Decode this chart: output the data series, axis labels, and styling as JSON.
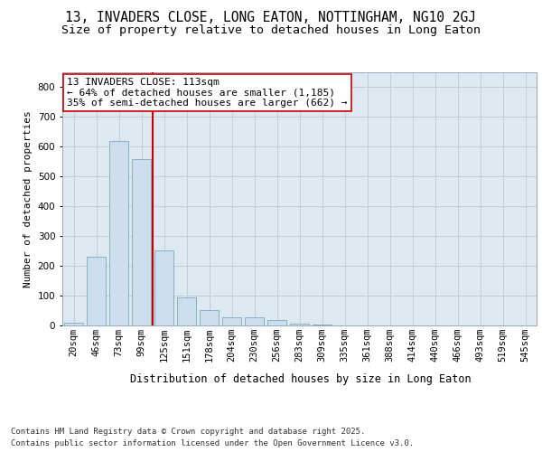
{
  "title_line1": "13, INVADERS CLOSE, LONG EATON, NOTTINGHAM, NG10 2GJ",
  "title_line2": "Size of property relative to detached houses in Long Eaton",
  "xlabel": "Distribution of detached houses by size in Long Eaton",
  "ylabel": "Number of detached properties",
  "categories": [
    "20sqm",
    "46sqm",
    "73sqm",
    "99sqm",
    "125sqm",
    "151sqm",
    "178sqm",
    "204sqm",
    "230sqm",
    "256sqm",
    "283sqm",
    "309sqm",
    "335sqm",
    "361sqm",
    "388sqm",
    "414sqm",
    "440sqm",
    "466sqm",
    "493sqm",
    "519sqm",
    "545sqm"
  ],
  "values": [
    10,
    232,
    620,
    560,
    252,
    95,
    53,
    28,
    27,
    18,
    5,
    3,
    1,
    0,
    0,
    0,
    0,
    0,
    0,
    0,
    0
  ],
  "bar_color": "#ccdded",
  "bar_edge_color": "#7aaabb",
  "vline_color": "#cc0000",
  "annotation_text": "13 INVADERS CLOSE: 113sqm\n← 64% of detached houses are smaller (1,185)\n35% of semi-detached houses are larger (662) →",
  "annotation_box_color": "#ffffff",
  "annotation_box_edge": "#cc0000",
  "grid_color": "#c0ccd8",
  "plot_bg_color": "#dde8f0",
  "ylim": [
    0,
    850
  ],
  "yticks": [
    0,
    100,
    200,
    300,
    400,
    500,
    600,
    700,
    800
  ],
  "footer_line1": "Contains HM Land Registry data © Crown copyright and database right 2025.",
  "footer_line2": "Contains public sector information licensed under the Open Government Licence v3.0.",
  "title_fontsize": 10.5,
  "subtitle_fontsize": 9.5,
  "ylabel_fontsize": 8,
  "xlabel_fontsize": 8.5,
  "tick_fontsize": 7.5,
  "annotation_fontsize": 8,
  "footer_fontsize": 6.5
}
